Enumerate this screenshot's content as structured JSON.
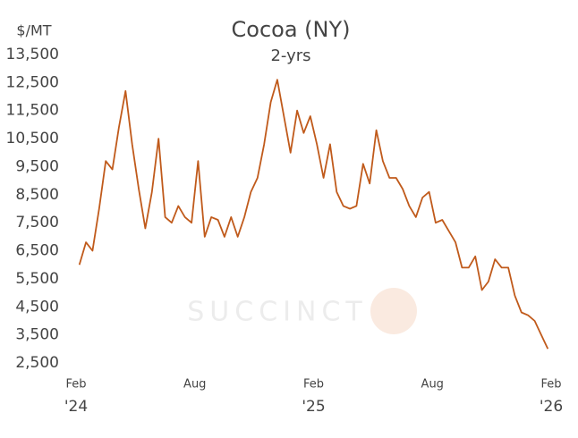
{
  "chart_data": {
    "type": "line",
    "title": "Cocoa (NY)",
    "subtitle": "2-yrs",
    "y_label": "$/MT",
    "watermark": "SUCCINCT",
    "x": [
      "2024-02",
      "2024-02",
      "2024-02",
      "2024-03",
      "2024-03",
      "2024-03",
      "2024-04",
      "2024-04",
      "2024-04",
      "2024-05",
      "2024-05",
      "2024-05",
      "2024-06",
      "2024-06",
      "2024-06",
      "2024-07",
      "2024-07",
      "2024-07",
      "2024-08",
      "2024-08",
      "2024-08",
      "2024-09",
      "2024-09",
      "2024-09",
      "2024-10",
      "2024-10",
      "2024-10",
      "2024-11",
      "2024-11",
      "2024-11",
      "2024-12",
      "2024-12",
      "2024-12",
      "2025-01",
      "2025-01",
      "2025-01",
      "2025-02",
      "2025-02",
      "2025-02",
      "2025-03",
      "2025-03",
      "2025-03",
      "2025-04",
      "2025-04",
      "2025-04",
      "2025-05",
      "2025-05",
      "2025-05",
      "2025-06",
      "2025-06",
      "2025-06",
      "2025-07",
      "2025-07",
      "2025-07",
      "2025-08",
      "2025-08",
      "2025-08",
      "2025-09",
      "2025-09",
      "2025-09",
      "2025-10",
      "2025-10",
      "2025-10",
      "2025-11",
      "2025-11",
      "2025-11",
      "2025-12",
      "2025-12",
      "2025-12",
      "2026-01",
      "2026-01",
      "2026-01"
    ],
    "series": [
      {
        "name": "Cocoa (NY)",
        "color": "#c05a1b",
        "values": [
          6000,
          6800,
          6500,
          8000,
          9700,
          9400,
          10900,
          12200,
          10300,
          8700,
          7300,
          8600,
          10500,
          7700,
          7500,
          8100,
          7700,
          7500,
          9700,
          7000,
          7700,
          7600,
          7000,
          7700,
          7000,
          7700,
          8600,
          9100,
          10300,
          11800,
          12600,
          11300,
          10000,
          11500,
          10700,
          11300,
          10300,
          9100,
          10300,
          8600,
          8100,
          8000,
          8100,
          9600,
          8900,
          10800,
          9700,
          9100,
          9100,
          8700,
          8100,
          7700,
          8400,
          8600,
          7500,
          7600,
          7200,
          6800,
          5900,
          5900,
          6300,
          5100,
          5400,
          6200,
          5900,
          5900,
          4900,
          4300,
          4200,
          4000,
          3500,
          3000
        ]
      }
    ],
    "xlim": [
      "2024-02",
      "2026-02"
    ],
    "xticks": [
      {
        "value": "2024-02",
        "label": "Feb",
        "year": "'24"
      },
      {
        "value": "2024-08",
        "label": "Aug"
      },
      {
        "value": "2025-02",
        "label": "Feb",
        "year": "'25"
      },
      {
        "value": "2025-08",
        "label": "Aug"
      },
      {
        "value": "2026-02",
        "label": "Feb",
        "year": "'26"
      }
    ],
    "ylim": [
      2500,
      13500
    ],
    "yticks": [
      {
        "value": 2500,
        "label": "2,500"
      },
      {
        "value": 3500,
        "label": "3,500"
      },
      {
        "value": 4500,
        "label": "4,500"
      },
      {
        "value": 5500,
        "label": "5,500"
      },
      {
        "value": 6500,
        "label": "6,500"
      },
      {
        "value": 7500,
        "label": "7,500"
      },
      {
        "value": 8500,
        "label": "8,500"
      },
      {
        "value": 9500,
        "label": "9,500"
      },
      {
        "value": 10500,
        "label": "10,500"
      },
      {
        "value": 11500,
        "label": "11,500"
      },
      {
        "value": 12500,
        "label": "12,500"
      },
      {
        "value": 13500,
        "label": "13,500"
      }
    ],
    "grid": false
  }
}
